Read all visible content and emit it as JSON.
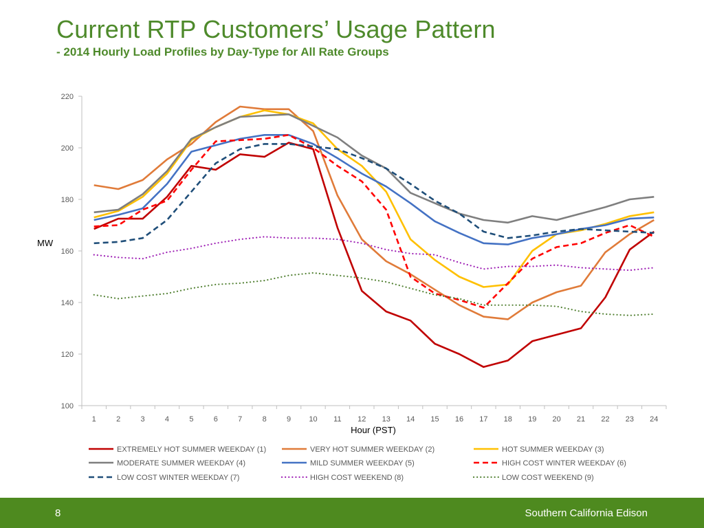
{
  "slide": {
    "title": "Current RTP Customers’ Usage Pattern",
    "subtitle": "- 2014 Hourly Load Profiles by Day-Type for All Rate Groups"
  },
  "footer": {
    "page_number": "8",
    "organization": "Southern California Edison",
    "background_color": "#4e8a1f"
  },
  "chart_data": {
    "type": "line",
    "xlabel": "Hour (PST)",
    "ylabel": "MW",
    "x": [
      1,
      2,
      3,
      4,
      5,
      6,
      7,
      8,
      9,
      10,
      11,
      12,
      13,
      14,
      15,
      16,
      17,
      18,
      19,
      20,
      21,
      22,
      23,
      24
    ],
    "ylim": [
      100,
      220
    ],
    "yticks": [
      100,
      120,
      140,
      160,
      180,
      200,
      220
    ],
    "grid": false,
    "legend_position": "bottom",
    "series": [
      {
        "name": "EXTREMELY HOT SUMMER WEEKDAY (1)",
        "color": "#c00000",
        "style": "solid",
        "values": [
          168.5,
          172.5,
          172.5,
          181,
          193,
          191.5,
          197.5,
          196.5,
          202,
          199.5,
          169,
          144.5,
          136.5,
          133,
          124,
          120,
          115,
          117.5,
          125,
          127.5,
          130,
          142,
          160.5,
          167.5
        ]
      },
      {
        "name": "VERY HOT SUMMER WEEKDAY (2)",
        "color": "#e07b39",
        "style": "solid",
        "values": [
          185.5,
          184,
          187.5,
          195.5,
          201.5,
          210,
          216,
          215,
          215,
          206.5,
          181.5,
          164.5,
          156,
          151,
          145,
          139,
          134.5,
          133.5,
          140,
          144,
          146.5,
          159.5,
          166.5,
          172
        ]
      },
      {
        "name": "HOT SUMMER WEEKDAY (3)",
        "color": "#ffc000",
        "style": "solid",
        "values": [
          173,
          175.5,
          181,
          190,
          203,
          208,
          212,
          214.5,
          213,
          209.5,
          199.5,
          193,
          183,
          164.5,
          156.5,
          150,
          146,
          147,
          160,
          166.5,
          168,
          170.5,
          173.5,
          175
        ]
      },
      {
        "name": "MODERATE SUMMER WEEKDAY (4)",
        "color": "#7f7f7f",
        "style": "solid",
        "values": [
          175,
          176,
          182,
          191,
          203.5,
          208,
          212,
          212.5,
          213,
          208.5,
          204,
          197,
          192,
          182.5,
          178.5,
          174.5,
          172,
          171,
          173.5,
          172,
          174.5,
          177,
          180,
          181
        ]
      },
      {
        "name": "MILD SUMMER WEEKDAY (5)",
        "color": "#4472c4",
        "style": "solid",
        "values": [
          172,
          174,
          176.5,
          186,
          198.5,
          201,
          203.5,
          205,
          205,
          201.5,
          196,
          190,
          185,
          178.5,
          171.5,
          167,
          163,
          162.5,
          165,
          166.5,
          168.5,
          170,
          172.5,
          173
        ]
      },
      {
        "name": "HIGH COST WINTER WEEKDAY (6)",
        "color": "#ff0000",
        "style": "dashed",
        "values": [
          169.5,
          170,
          176,
          179.5,
          191.5,
          202.5,
          203,
          203.5,
          205,
          200,
          193,
          187,
          176,
          150,
          143.5,
          141,
          138,
          147.5,
          157,
          161.5,
          163,
          167,
          170,
          165.5
        ]
      },
      {
        "name": "LOW COST WINTER WEEKDAY (7)",
        "color": "#1f4e79",
        "style": "dashed",
        "values": [
          163,
          163.5,
          165,
          172,
          183,
          194,
          199.5,
          201.5,
          201.5,
          200.5,
          199.5,
          196,
          192,
          186,
          179.5,
          174.5,
          167.5,
          165,
          166,
          167.5,
          168.5,
          168,
          167.5,
          167
        ]
      },
      {
        "name": "HIGH COST WEEKEND (8)",
        "color": "#9e1fb5",
        "style": "dotted",
        "values": [
          158.5,
          157.5,
          157,
          159.5,
          161,
          163,
          164.5,
          165.5,
          165,
          165,
          164.5,
          163,
          160.5,
          159,
          158.5,
          155.5,
          153,
          154,
          154,
          154.5,
          153.5,
          153,
          152.5,
          153.5
        ]
      },
      {
        "name": "LOW COST WEEKEND (9)",
        "color": "#548235",
        "style": "dotted",
        "values": [
          143,
          141.5,
          142.5,
          143.5,
          145.5,
          147,
          147.5,
          148.5,
          150.5,
          151.5,
          150.5,
          149.5,
          148,
          145.5,
          143,
          141.5,
          139,
          139,
          139,
          138.5,
          136.5,
          135.5,
          135,
          135.5
        ]
      }
    ]
  }
}
